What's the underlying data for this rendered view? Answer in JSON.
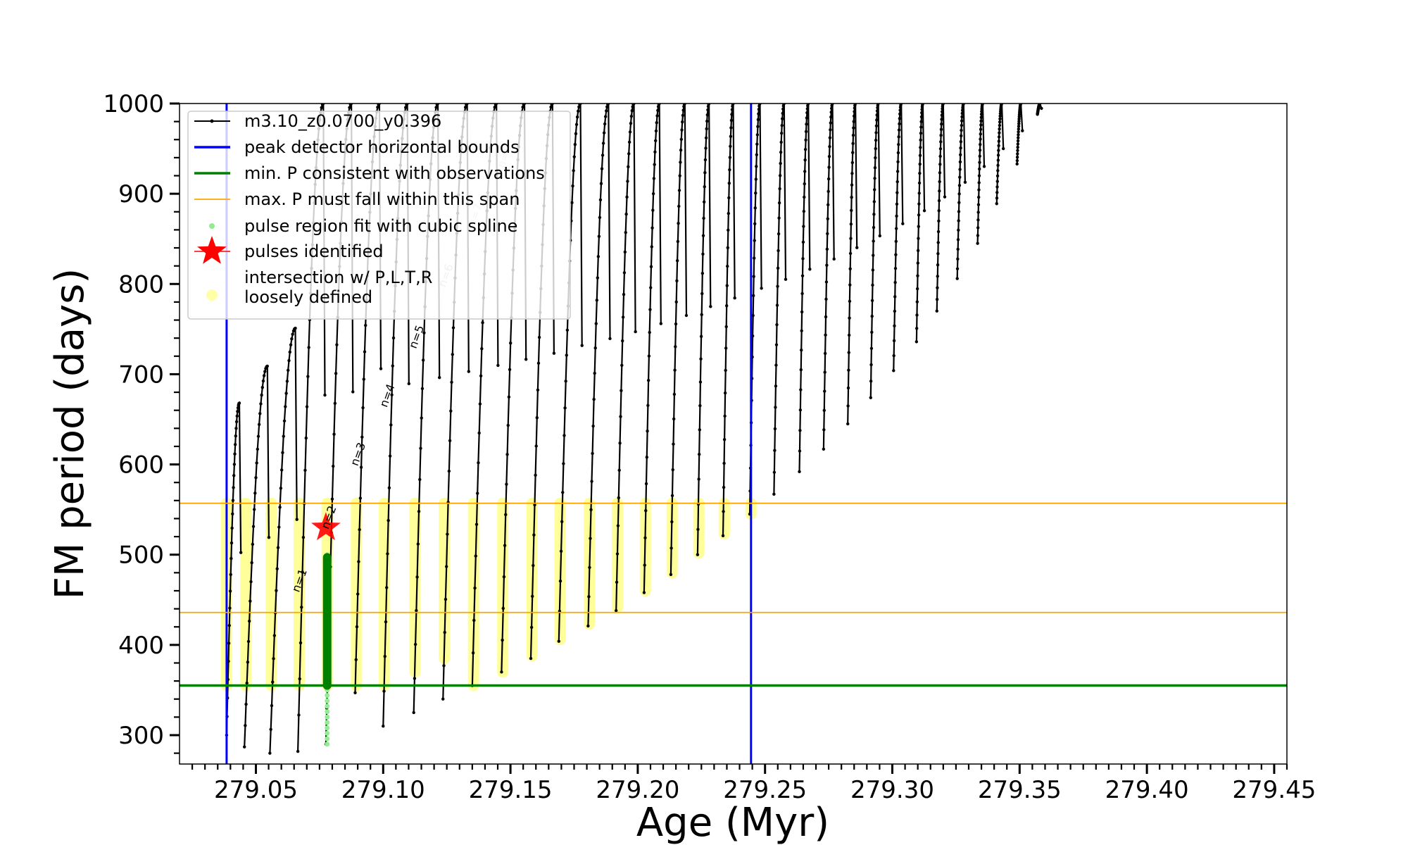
{
  "chart_data": {
    "type": "line",
    "title": "",
    "xlabel": "Age (Myr)",
    "ylabel": "FM period (days)",
    "xlim": [
      279.02,
      279.455
    ],
    "ylim": [
      268,
      1000
    ],
    "x_ticks": [
      279.05,
      279.1,
      279.15,
      279.2,
      279.25,
      279.3,
      279.35,
      279.4,
      279.45
    ],
    "x_tick_labels": [
      "279.05",
      "279.10",
      "279.15",
      "279.20",
      "279.25",
      "279.30",
      "279.35",
      "279.40",
      "279.45"
    ],
    "y_ticks": [
      300,
      400,
      500,
      600,
      700,
      800,
      900,
      1000
    ],
    "y_tick_labels": [
      "300",
      "400",
      "500",
      "600",
      "700",
      "800",
      "900",
      "1000"
    ],
    "grid": false,
    "legend_position": "top-left",
    "legend": [
      {
        "label": "m3.10_z0.0700_y0.396",
        "kind": "line-dot",
        "color": "#000000"
      },
      {
        "label": "peak detector horizontal bounds",
        "kind": "line",
        "color": "#0000ff"
      },
      {
        "label": "min. P consistent with observations",
        "kind": "line",
        "color": "#008000"
      },
      {
        "label": "max. P must fall within this span",
        "kind": "thin-line",
        "color": "#ffa500"
      },
      {
        "label": "pulse region fit with cubic spline",
        "kind": "dot",
        "color": "#90ee90"
      },
      {
        "label": "pulses identified",
        "kind": "star",
        "color": "#ff0000"
      },
      {
        "label": "intersection w/ P,L,T,R",
        "label2": "loosely defined",
        "kind": "circle",
        "color": "#ffff99"
      }
    ],
    "reference_lines": {
      "peak_detector_bounds_x": [
        279.0385,
        279.2445
      ],
      "min_period": 355,
      "max_period_span": [
        436,
        557
      ]
    },
    "pulses": [
      {
        "x0": 279.0385,
        "xpk": 279.0435,
        "ymin": 300,
        "ypk": 668
      },
      {
        "x0": 279.0455,
        "xpk": 279.0545,
        "ymin": 287,
        "ypk": 709
      },
      {
        "x0": 279.0555,
        "xpk": 279.0655,
        "ymin": 280,
        "ypk": 751
      },
      {
        "x0": 279.0665,
        "xpk": 279.0765,
        "ymin": 282,
        "ypk": 1000
      },
      {
        "x0": 279.0775,
        "xpk": 279.0875,
        "ymin": 290,
        "ypk": 1000
      },
      {
        "x0": 279.089,
        "xpk": 279.0985,
        "ymin": 347,
        "ypk": 1000
      },
      {
        "x0": 279.1,
        "xpk": 279.1095,
        "ymin": 310,
        "ypk": 1000
      },
      {
        "x0": 279.112,
        "xpk": 279.1215,
        "ymin": 325,
        "ypk": 1000
      },
      {
        "x0": 279.1235,
        "xpk": 279.133,
        "ymin": 340,
        "ypk": 1000
      },
      {
        "x0": 279.135,
        "xpk": 279.1445,
        "ymin": 355,
        "ypk": 1000
      },
      {
        "x0": 279.1465,
        "xpk": 279.1555,
        "ymin": 370,
        "ypk": 1000
      },
      {
        "x0": 279.158,
        "xpk": 279.1665,
        "ymin": 385,
        "ypk": 1000
      },
      {
        "x0": 279.169,
        "xpk": 279.1775,
        "ymin": 404,
        "ypk": 1000
      },
      {
        "x0": 279.1805,
        "xpk": 279.1885,
        "ymin": 421,
        "ypk": 1000
      },
      {
        "x0": 279.1915,
        "xpk": 279.1985,
        "ymin": 438,
        "ypk": 1000
      },
      {
        "x0": 279.2025,
        "xpk": 279.2085,
        "ymin": 458,
        "ypk": 1000
      },
      {
        "x0": 279.213,
        "xpk": 279.2185,
        "ymin": 478,
        "ypk": 1000
      },
      {
        "x0": 279.2235,
        "xpk": 279.228,
        "ymin": 500,
        "ypk": 1000
      },
      {
        "x0": 279.2335,
        "xpk": 279.2375,
        "ymin": 521,
        "ypk": 1000
      },
      {
        "x0": 279.244,
        "xpk": 279.248,
        "ymin": 545,
        "ypk": 1000
      },
      {
        "x0": 279.2535,
        "xpk": 279.2575,
        "ymin": 567,
        "ypk": 1000
      },
      {
        "x0": 279.2635,
        "xpk": 279.267,
        "ymin": 592,
        "ypk": 1000
      },
      {
        "x0": 279.273,
        "xpk": 279.2765,
        "ymin": 617,
        "ypk": 1000
      },
      {
        "x0": 279.2825,
        "xpk": 279.2855,
        "ymin": 645,
        "ypk": 1000
      },
      {
        "x0": 279.2915,
        "xpk": 279.2945,
        "ymin": 674,
        "ypk": 1000
      },
      {
        "x0": 279.3005,
        "xpk": 279.3035,
        "ymin": 704,
        "ypk": 1000
      },
      {
        "x0": 279.3095,
        "xpk": 279.312,
        "ymin": 736,
        "ypk": 1000
      },
      {
        "x0": 279.3175,
        "xpk": 279.32,
        "ymin": 770,
        "ypk": 1000
      },
      {
        "x0": 279.3255,
        "xpk": 279.328,
        "ymin": 806,
        "ypk": 1000
      },
      {
        "x0": 279.3335,
        "xpk": 279.3355,
        "ymin": 845,
        "ypk": 1000
      },
      {
        "x0": 279.341,
        "xpk": 279.343,
        "ymin": 889,
        "ypk": 1000
      },
      {
        "x0": 279.349,
        "xpk": 279.3505,
        "ymin": 933,
        "ypk": 1000
      },
      {
        "x0": 279.357,
        "xpk": 279.358,
        "ymin": 988,
        "ypk": 1000
      }
    ],
    "spline_fit": {
      "x": 279.078,
      "ymin": 290,
      "ymax": 500
    },
    "green_cluster": {
      "x": 279.078,
      "ymin": 355,
      "ymax": 497
    },
    "pulses_identified": [
      {
        "x": 279.0775,
        "y": 530
      }
    ],
    "intersections": [
      {
        "x": 279.0385,
        "ylo": 355,
        "yhi": 557
      },
      {
        "x": 279.046,
        "ylo": 355,
        "yhi": 557
      },
      {
        "x": 279.056,
        "ylo": 355,
        "yhi": 557
      },
      {
        "x": 279.067,
        "ylo": 355,
        "yhi": 557
      },
      {
        "x": 279.078,
        "ylo": 355,
        "yhi": 557
      },
      {
        "x": 279.0895,
        "ylo": 355,
        "yhi": 557
      },
      {
        "x": 279.1005,
        "ylo": 355,
        "yhi": 557
      },
      {
        "x": 279.1125,
        "ylo": 370,
        "yhi": 557
      },
      {
        "x": 279.124,
        "ylo": 385,
        "yhi": 557
      },
      {
        "x": 279.1355,
        "ylo": 355,
        "yhi": 557
      },
      {
        "x": 279.147,
        "ylo": 370,
        "yhi": 557
      },
      {
        "x": 279.1585,
        "ylo": 388,
        "yhi": 557
      },
      {
        "x": 279.1695,
        "ylo": 406,
        "yhi": 557
      },
      {
        "x": 279.181,
        "ylo": 423,
        "yhi": 557
      },
      {
        "x": 279.192,
        "ylo": 441,
        "yhi": 557
      },
      {
        "x": 279.203,
        "ylo": 460,
        "yhi": 557
      },
      {
        "x": 279.2135,
        "ylo": 480,
        "yhi": 557
      },
      {
        "x": 279.224,
        "ylo": 502,
        "yhi": 557
      },
      {
        "x": 279.234,
        "ylo": 523,
        "yhi": 557
      },
      {
        "x": 279.2445,
        "ylo": 545,
        "yhi": 557
      }
    ],
    "n_labels": [
      {
        "text": "n=1",
        "x": 279.0685,
        "y": 470,
        "color": "#000000"
      },
      {
        "text": "n=2",
        "x": 279.08,
        "y": 540,
        "color": "#000000"
      },
      {
        "text": "n=3",
        "x": 279.0915,
        "y": 610,
        "color": "#000000"
      },
      {
        "text": "n=4",
        "x": 279.103,
        "y": 675,
        "color": "#000000"
      },
      {
        "text": "n=5",
        "x": 279.1145,
        "y": 740,
        "color": "#000000"
      },
      {
        "text": "n=6",
        "x": 279.126,
        "y": 808,
        "color": "#bbbbbb"
      },
      {
        "text": "n=7",
        "x": 279.1375,
        "y": 875,
        "color": "#cccccc"
      },
      {
        "text": "n=8",
        "x": 279.149,
        "y": 940,
        "color": "#cccccc"
      }
    ]
  }
}
